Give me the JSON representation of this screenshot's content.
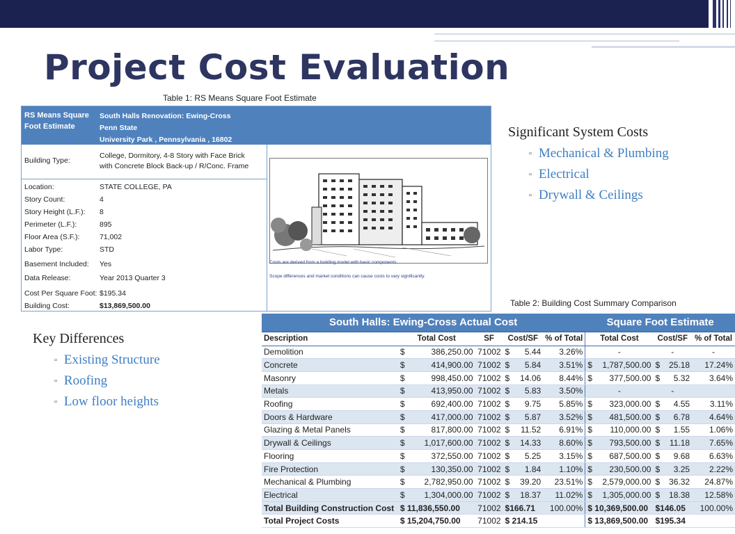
{
  "title": "Project Cost Evaluation",
  "table1_caption": "Table 1: RS Means Square Foot Estimate",
  "table2_caption": "Table 2: Building Cost Summary Comparison",
  "rs_means": {
    "header_left": "RS Means Square Foot Estimate",
    "project_name": "South Halls Renovation: Ewing-Cross",
    "owner": "Penn State",
    "location_line": "University Park , Pennsylvania , 16802",
    "building_type_label": "Building Type:",
    "building_type_value_1": "College, Dormitory, 4-8 Story with Face Brick",
    "building_type_value_2": "with Concrete Block Back-up / R/Conc. Frame",
    "rows": [
      {
        "label": "Location:",
        "value": "STATE COLLEGE, PA"
      },
      {
        "label": "Story Count:",
        "value": "4"
      },
      {
        "label": "Story Height (L.F.):",
        "value": "8"
      },
      {
        "label": "Perimeter (L.F.):",
        "value": "895"
      },
      {
        "label": "Floor Area (S.F.):",
        "value": "71,002"
      },
      {
        "label": "Labor Type:",
        "value": "STD"
      },
      {
        "label": "Basement Included:",
        "value": "Yes"
      },
      {
        "label": "Data Release:",
        "value": "Year 2013 Quarter 3"
      },
      {
        "label": "Cost Per Square Foot:",
        "value": "$195.34"
      },
      {
        "label": "Building Cost:",
        "value": "$13,869,500.00"
      }
    ],
    "note_1": "Costs are derived from a building model with basic components.",
    "note_2": "Scope differences and market conditions can cause costs to vary significantly."
  },
  "significant": {
    "heading": "Significant System Costs",
    "items": [
      "Mechanical & Plumbing",
      "Electrical",
      "Drywall & Ceilings"
    ]
  },
  "differences": {
    "heading": "Key Differences",
    "items": [
      "Existing Structure",
      "Roofing",
      "Low floor heights"
    ]
  },
  "cost_table": {
    "group_actual": "South Halls: Ewing-Cross Actual Cost",
    "group_estimate": "Square Foot Estimate",
    "columns": [
      "Description",
      "Total Cost",
      "SF",
      "Cost/SF",
      "% of Total",
      "Total Cost",
      "Cost/SF",
      "% of Total"
    ],
    "rows": [
      {
        "desc": "Demolition",
        "total": "386,250.00",
        "sf": "71002",
        "cpsf": "5.44",
        "pct": "3.26%",
        "e_total": "-",
        "e_cpsf": "-",
        "e_pct": "-"
      },
      {
        "desc": "Concrete",
        "total": "414,900.00",
        "sf": "71002",
        "cpsf": "5.84",
        "pct": "3.51%",
        "e_total": "1,787,500.00",
        "e_cpsf": "25.18",
        "e_pct": "17.24%"
      },
      {
        "desc": "Masonry",
        "total": "998,450.00",
        "sf": "71002",
        "cpsf": "14.06",
        "pct": "8.44%",
        "e_total": "377,500.00",
        "e_cpsf": "5.32",
        "e_pct": "3.64%"
      },
      {
        "desc": "Metals",
        "total": "413,950.00",
        "sf": "71002",
        "cpsf": "5.83",
        "pct": "3.50%",
        "e_total": "-",
        "e_cpsf": "-",
        "e_pct": ""
      },
      {
        "desc": "Roofing",
        "total": "692,400.00",
        "sf": "71002",
        "cpsf": "9.75",
        "pct": "5.85%",
        "e_total": "323,000.00",
        "e_cpsf": "4.55",
        "e_pct": "3.11%"
      },
      {
        "desc": "Doors & Hardware",
        "total": "417,000.00",
        "sf": "71002",
        "cpsf": "5.87",
        "pct": "3.52%",
        "e_total": "481,500.00",
        "e_cpsf": "6.78",
        "e_pct": "4.64%"
      },
      {
        "desc": "Glazing & Metal Panels",
        "total": "817,800.00",
        "sf": "71002",
        "cpsf": "11.52",
        "pct": "6.91%",
        "e_total": "110,000.00",
        "e_cpsf": "1.55",
        "e_pct": "1.06%"
      },
      {
        "desc": "Drywall & Ceilings",
        "total": "1,017,600.00",
        "sf": "71002",
        "cpsf": "14.33",
        "pct": "8.60%",
        "e_total": "793,500.00",
        "e_cpsf": "11.18",
        "e_pct": "7.65%"
      },
      {
        "desc": "Flooring",
        "total": "372,550.00",
        "sf": "71002",
        "cpsf": "5.25",
        "pct": "3.15%",
        "e_total": "687,500.00",
        "e_cpsf": "9.68",
        "e_pct": "6.63%"
      },
      {
        "desc": "Fire Protection",
        "total": "130,350.00",
        "sf": "71002",
        "cpsf": "1.84",
        "pct": "1.10%",
        "e_total": "230,500.00",
        "e_cpsf": "3.25",
        "e_pct": "2.22%"
      },
      {
        "desc": "Mechanical & Plumbing",
        "total": "2,782,950.00",
        "sf": "71002",
        "cpsf": "39.20",
        "pct": "23.51%",
        "e_total": "2,579,000.00",
        "e_cpsf": "36.32",
        "e_pct": "24.87%"
      },
      {
        "desc": "Electrical",
        "total": "1,304,000.00",
        "sf": "71002",
        "cpsf": "18.37",
        "pct": "11.02%",
        "e_total": "1,305,000.00",
        "e_cpsf": "18.38",
        "e_pct": "12.58%"
      }
    ],
    "total_construction": {
      "desc": "Total Building Construction Cost",
      "total": "$ 11,836,550.00",
      "sf": "71002",
      "cpsf": "$166.71",
      "pct": "100.00%",
      "e_total": "$ 10,369,500.00",
      "e_cpsf": "$146.05",
      "e_pct": "100.00%"
    },
    "total_project": {
      "desc": "Total Project Costs",
      "total": "$ 15,204,750.00",
      "sf": "71002",
      "cpsf": "$ 214.15",
      "pct": "",
      "e_total": "$ 13,869,500.00",
      "e_cpsf": "$195.34",
      "e_pct": ""
    }
  },
  "colors": {
    "band": "#1b2250",
    "title": "#2d3560",
    "accent": "#4f81bd",
    "bullet": "#3f7fc4"
  }
}
